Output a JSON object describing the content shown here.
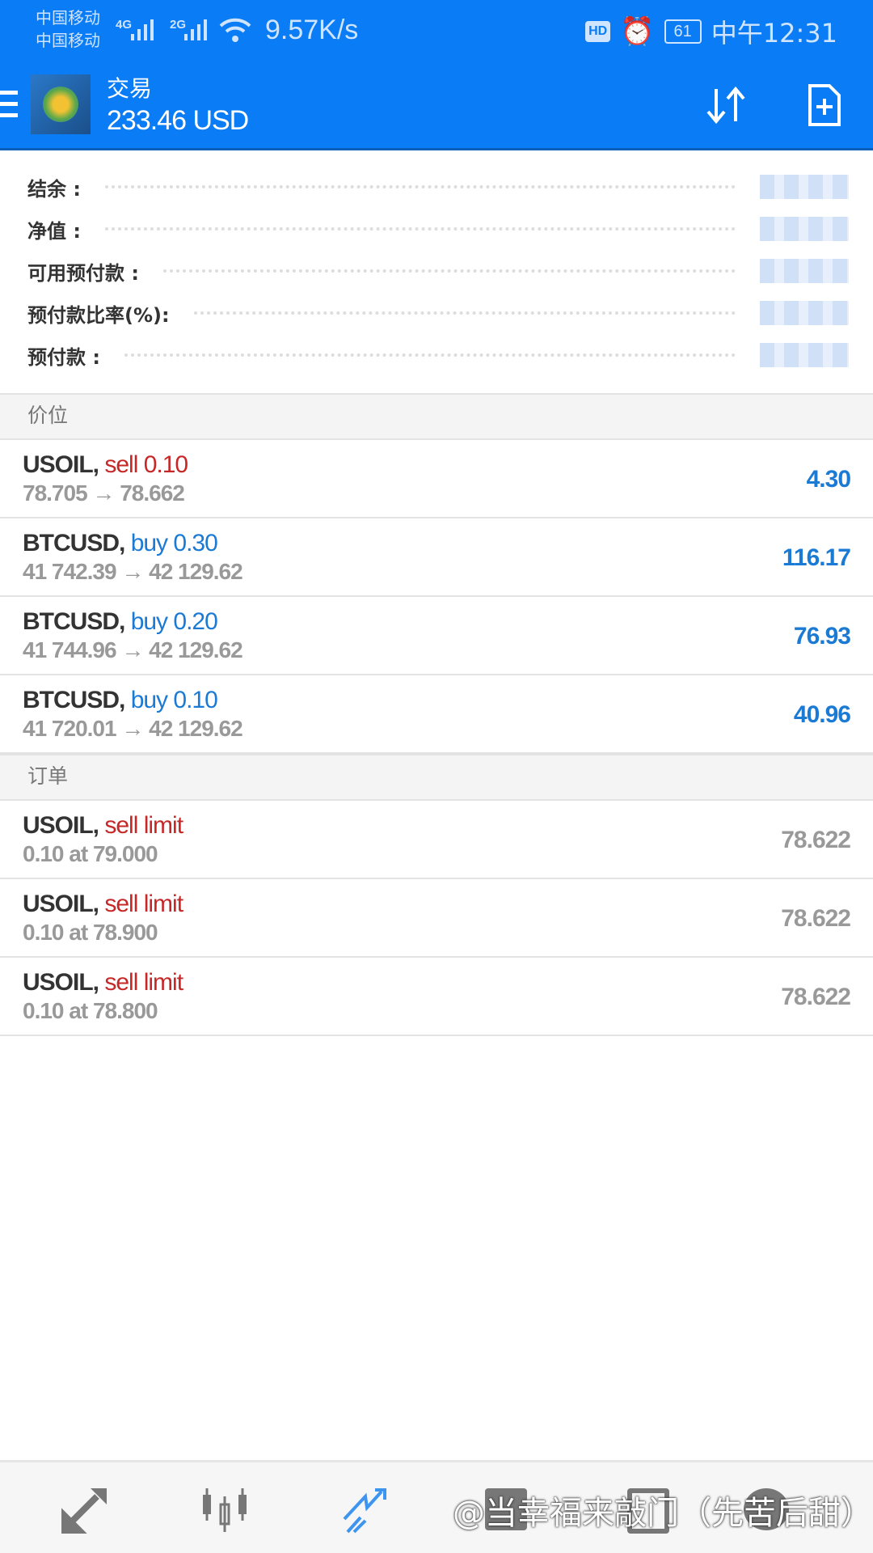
{
  "status_bar": {
    "carrier1": "中国移动",
    "carrier2": "中国移动",
    "net1": "4G",
    "net2": "2G",
    "speed": "9.57K/s",
    "hd": "HD",
    "battery": "61",
    "time": "中午12:31"
  },
  "header": {
    "title": "交易",
    "balance": "233.46 USD",
    "icons": [
      "sort-icon",
      "new-order-icon"
    ]
  },
  "summary": [
    {
      "label": "结余 :"
    },
    {
      "label": "净值 :"
    },
    {
      "label": "可用预付款 :"
    },
    {
      "label": "预付款比率(%):"
    },
    {
      "label": "预付款 :"
    }
  ],
  "positions_header": "价位",
  "positions": [
    {
      "symbol": "USOIL,",
      "side": "sell 0.10",
      "prices": "78.705 → 78.662",
      "profit": "4.30",
      "type": "sell"
    },
    {
      "symbol": "BTCUSD,",
      "side": "buy 0.30",
      "prices": "41 742.39 → 42 129.62",
      "profit": "116.17",
      "type": "buy"
    },
    {
      "symbol": "BTCUSD,",
      "side": "buy 0.20",
      "prices": "41 744.96 → 42 129.62",
      "profit": "76.93",
      "type": "buy"
    },
    {
      "symbol": "BTCUSD,",
      "side": "buy 0.10",
      "prices": "41 720.01 → 42 129.62",
      "profit": "40.96",
      "type": "buy"
    }
  ],
  "orders_header": "订单",
  "orders": [
    {
      "symbol": "USOIL,",
      "side": "sell limit",
      "detail": "0.10 at 79.000",
      "price": "78.622"
    },
    {
      "symbol": "USOIL,",
      "side": "sell limit",
      "detail": "0.10 at 78.900",
      "price": "78.622"
    },
    {
      "symbol": "USOIL,",
      "side": "sell limit",
      "detail": "0.10 at 78.800",
      "price": "78.622"
    }
  ],
  "bottom_nav": {
    "items": [
      "quotes-icon",
      "chart-icon",
      "trade-icon",
      "history-icon",
      "news-icon",
      "messages-icon"
    ],
    "active": "trade-icon"
  },
  "watermark": "@当幸福来敲门（先苦后甜）",
  "colors": {
    "primary": "#0a7cf5",
    "sell": "#c62828",
    "buy": "#1a7ad4",
    "active_nav": "#3d95f0"
  }
}
